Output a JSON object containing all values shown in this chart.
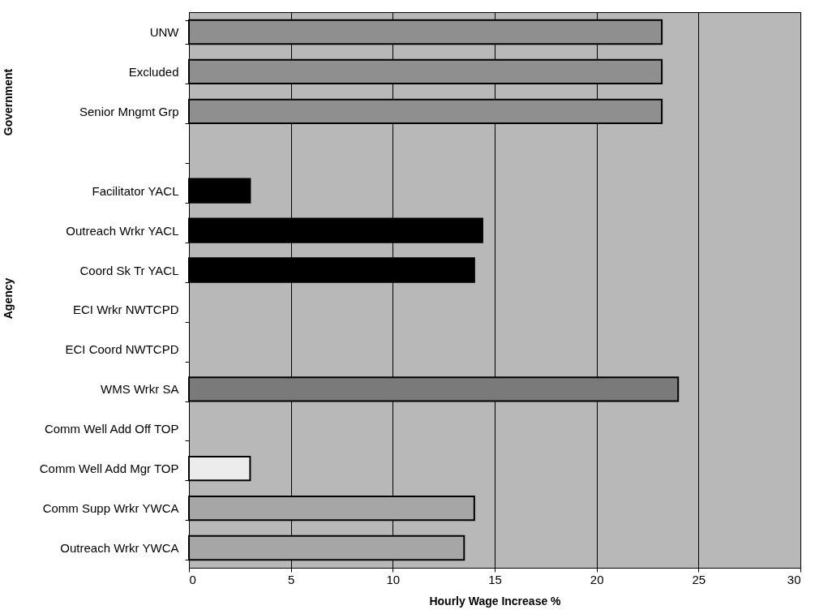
{
  "chart_data": {
    "type": "bar",
    "orientation": "horizontal",
    "xlabel": "Hourly Wage Increase %",
    "annotations": [
      "Government",
      "Agency"
    ],
    "categories": [
      "UNW",
      "Excluded",
      "Senior Mngmt Grp",
      null,
      "Facilitator YACL",
      "Outreach Wrkr YACL",
      "Coord Sk Tr YACL",
      "ECI Wrkr NWTCPD",
      "ECI Coord NWTCPD",
      "WMS Wrkr  SA",
      "Comm Well Add Off TOP",
      "Comm Well Add Mgr TOP",
      "Comm Supp Wrkr YWCA",
      "Outreach Wrkr YWCA"
    ],
    "values": [
      23.2,
      23.2,
      23.2,
      null,
      3.0,
      14.4,
      14.0,
      null,
      null,
      24.0,
      null,
      3.0,
      14.0,
      13.5
    ],
    "colors": [
      "#8f8f8f",
      "#8f8f8f",
      "#8f8f8f",
      null,
      "#000000",
      "#000000",
      "#000000",
      null,
      null,
      "#7a7a7a",
      null,
      "#ececec",
      "#a6a6a6",
      "#a6a6a6"
    ],
    "xlim": [
      0,
      30
    ],
    "xticks": [
      0,
      5,
      10,
      15,
      20,
      25,
      30
    ],
    "grid": "x"
  }
}
